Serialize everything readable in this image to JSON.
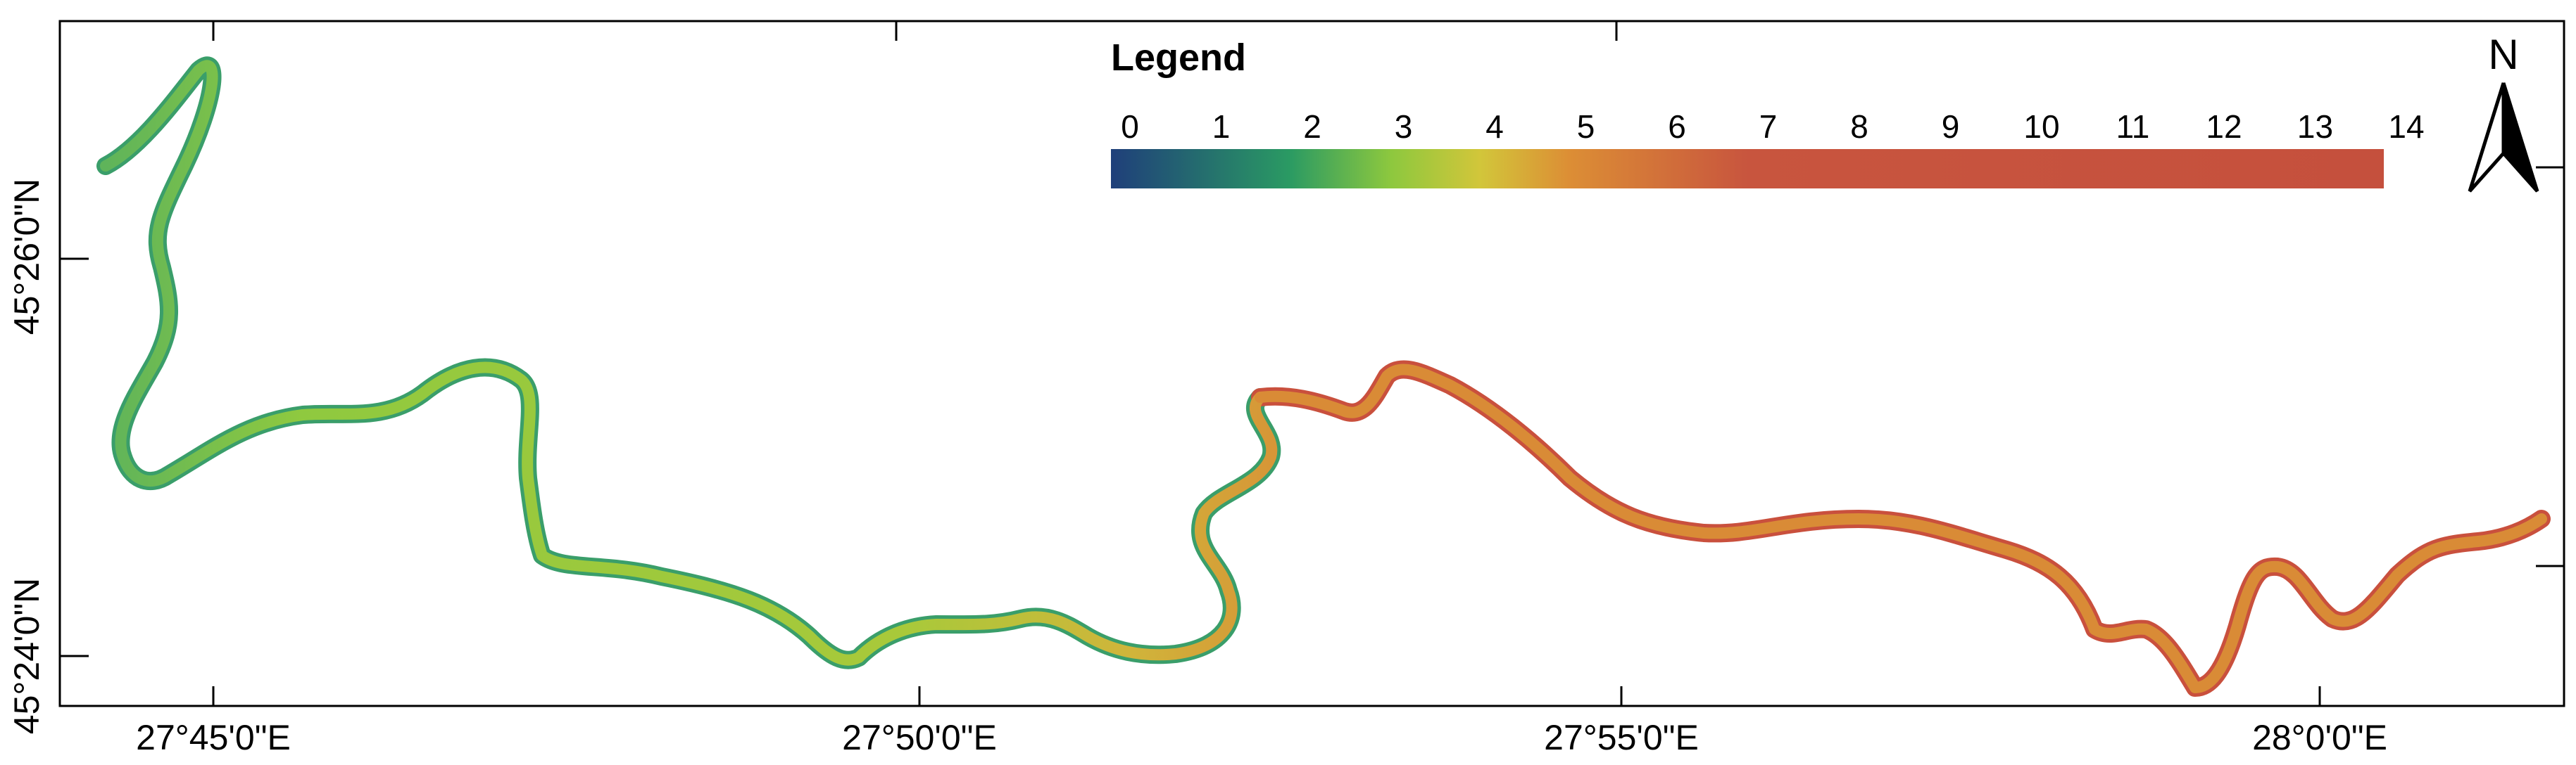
{
  "map": {
    "legend": {
      "title": "Legend",
      "labels": [
        "0",
        "1",
        "2",
        "3",
        "4",
        "5",
        "6",
        "7",
        "8",
        "9",
        "10",
        "11",
        "12",
        "13",
        "14"
      ],
      "colors": {
        "c0": "#1f3f7a",
        "c2": "#2a9a63",
        "c3": "#8dc83e",
        "c4": "#d2c63a",
        "c5": "#dc8e35",
        "c7": "#c8553e",
        "c14": "#c5503d"
      }
    },
    "north_arrow": {
      "label": "N",
      "icon": "north-arrow-icon"
    },
    "x_axis": {
      "labels": [
        "27°45'0\"E",
        "27°50'0\"E",
        "27°55'0\"E",
        "28°0'0\"E"
      ]
    },
    "y_axis": {
      "labels": [
        "45°26'0\"N",
        "45°24'0\"N"
      ]
    },
    "river": {
      "upstream_color": "#8fc93f",
      "upstream_edge": "#3a9e6a",
      "downstream_color": "#d98b36",
      "downstream_edge": "#c9503d"
    }
  }
}
